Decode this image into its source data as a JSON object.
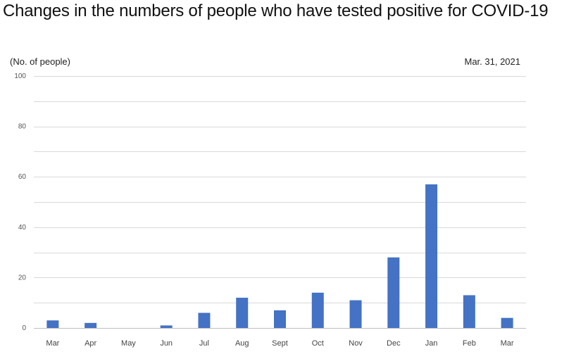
{
  "chart_data": {
    "type": "bar",
    "title": "Changes in the numbers of people who have tested positive for COVID-19",
    "ylabel": "(No. of people)",
    "xlabel": "",
    "date_label": "Mar. 31, 2021",
    "categories": [
      "Mar",
      "Apr",
      "May",
      "Jun",
      "Jul",
      "Aug",
      "Sept",
      "Oct",
      "Nov",
      "Dec",
      "Jan",
      "Feb",
      "Mar"
    ],
    "values": [
      3,
      2,
      0,
      1,
      6,
      12,
      7,
      14,
      11,
      28,
      57,
      13,
      4
    ],
    "ylim": [
      0,
      100
    ],
    "yticks": [
      0,
      20,
      40,
      60,
      80,
      100
    ],
    "grid": true,
    "bar_color": "#4472c4",
    "grid_color": "#d9d9d9",
    "axis_color": "#bfbfbf"
  }
}
